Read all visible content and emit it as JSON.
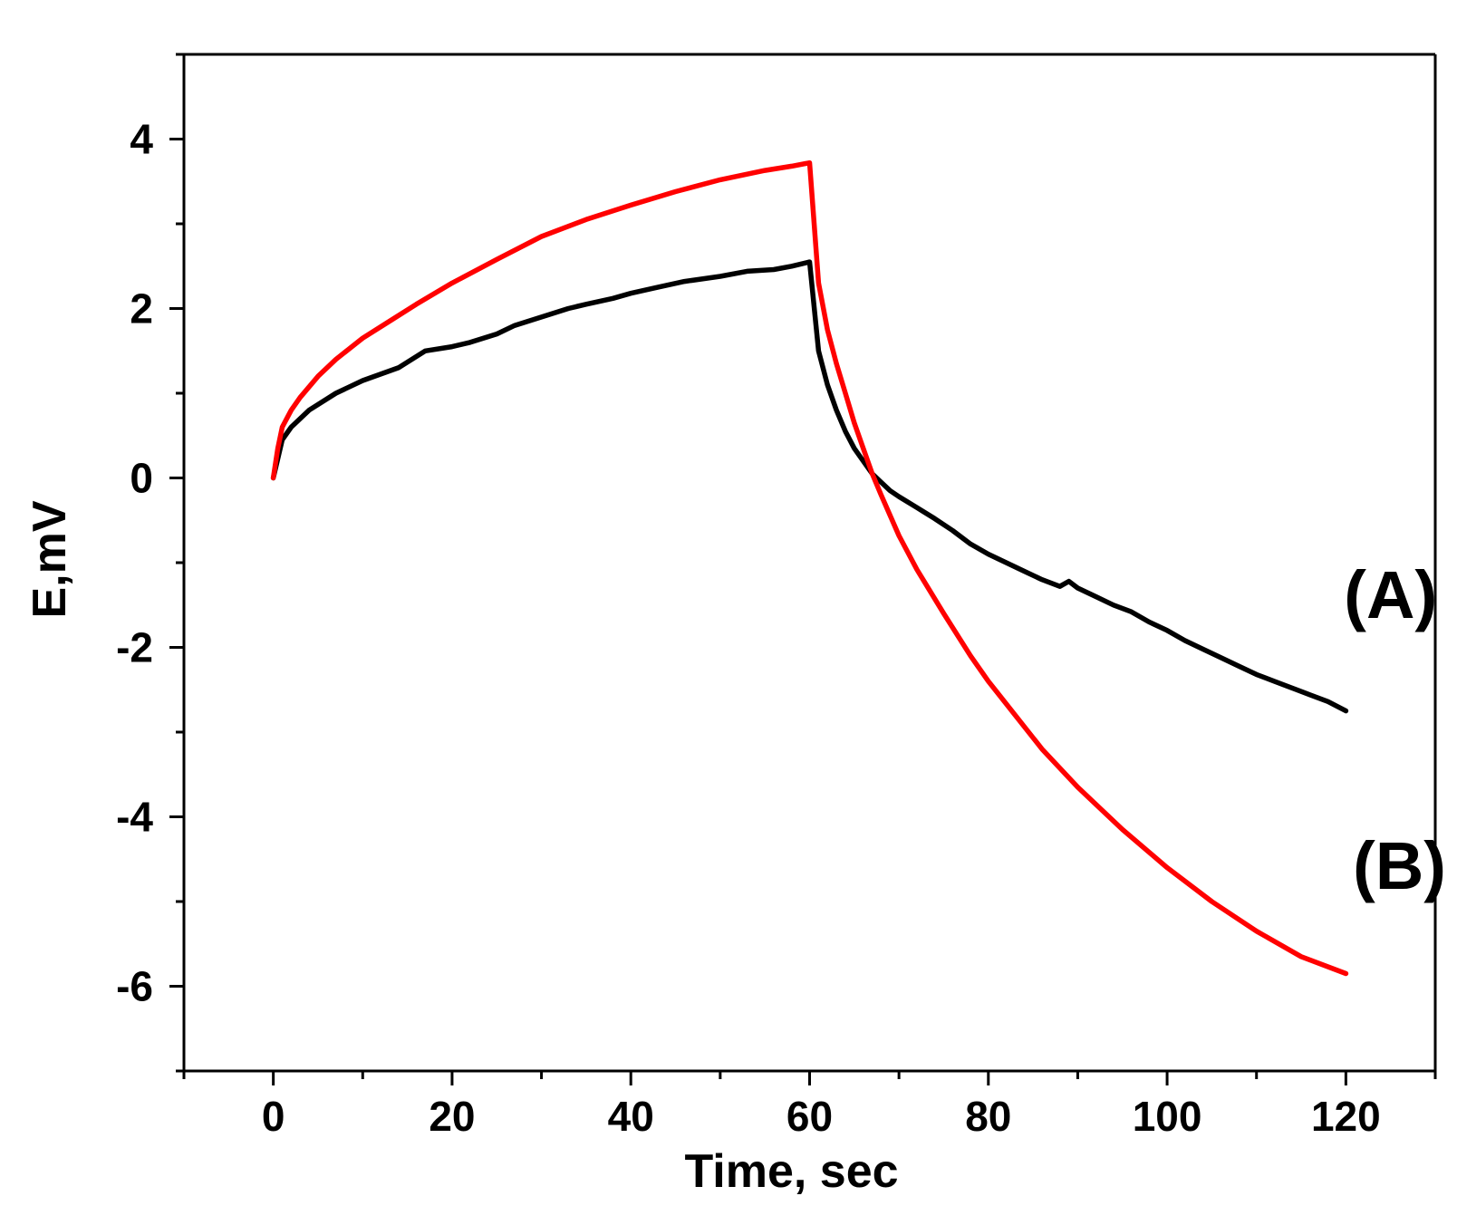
{
  "chart_data": {
    "type": "line",
    "title": "",
    "xlabel": "Time, sec",
    "ylabel": "E,mV",
    "xlim": [
      -10,
      130
    ],
    "ylim": [
      -7,
      5
    ],
    "x_ticks": [
      0,
      20,
      40,
      60,
      80,
      100,
      120
    ],
    "x_tick_labels": [
      "0",
      "20",
      "40",
      "60",
      "80",
      "100",
      "120"
    ],
    "x_minor_ticks": [
      -10,
      10,
      30,
      50,
      70,
      90,
      110,
      130
    ],
    "y_ticks": [
      -6,
      -4,
      -2,
      0,
      2,
      4
    ],
    "y_tick_labels": [
      "-6",
      "-4",
      "-2",
      "0",
      "2",
      "4"
    ],
    "y_minor_ticks": [
      -7,
      -5,
      -3,
      -1,
      1,
      3,
      5
    ],
    "grid": false,
    "legend": "none",
    "series": [
      {
        "name": "(A)",
        "label": "(A)",
        "label_anchor": [
          125,
          -1.65
        ],
        "color": "#000000",
        "x": [
          0,
          1,
          2,
          4,
          7,
          10,
          14,
          17,
          20,
          22,
          25,
          27,
          30,
          33,
          35,
          38,
          40,
          43,
          46,
          50,
          53,
          56,
          58,
          60,
          61,
          62,
          63,
          64,
          65,
          66,
          67,
          68,
          69,
          70,
          72,
          74,
          76,
          78,
          80,
          82,
          84,
          86,
          88,
          89,
          90,
          92,
          94,
          96,
          98,
          100,
          102,
          104,
          106,
          108,
          110,
          112,
          114,
          116,
          118,
          120
        ],
        "y": [
          0,
          0.45,
          0.6,
          0.8,
          1.0,
          1.15,
          1.3,
          1.5,
          1.55,
          1.6,
          1.7,
          1.8,
          1.9,
          2.0,
          2.05,
          2.12,
          2.18,
          2.25,
          2.32,
          2.38,
          2.44,
          2.46,
          2.5,
          2.55,
          1.5,
          1.1,
          0.8,
          0.55,
          0.35,
          0.2,
          0.05,
          -0.05,
          -0.15,
          -0.22,
          -0.35,
          -0.48,
          -0.62,
          -0.78,
          -0.9,
          -1.0,
          -1.1,
          -1.2,
          -1.28,
          -1.22,
          -1.3,
          -1.4,
          -1.5,
          -1.58,
          -1.7,
          -1.8,
          -1.92,
          -2.02,
          -2.12,
          -2.22,
          -2.32,
          -2.4,
          -2.48,
          -2.56,
          -2.64,
          -2.75
        ]
      },
      {
        "name": "(B)",
        "label": "(B)",
        "label_anchor": [
          126,
          -4.85
        ],
        "color": "#ff0000",
        "x": [
          0,
          0.5,
          1,
          2,
          3,
          5,
          7,
          10,
          13,
          16,
          20,
          25,
          30,
          35,
          40,
          45,
          50,
          55,
          58,
          60,
          61,
          62,
          63,
          64,
          65,
          66,
          67,
          68,
          70,
          72,
          75,
          78,
          80,
          83,
          86,
          90,
          95,
          100,
          105,
          110,
          115,
          120
        ],
        "y": [
          0,
          0.35,
          0.6,
          0.8,
          0.95,
          1.2,
          1.4,
          1.65,
          1.85,
          2.05,
          2.3,
          2.58,
          2.85,
          3.05,
          3.22,
          3.38,
          3.52,
          3.63,
          3.68,
          3.72,
          2.3,
          1.75,
          1.35,
          1.0,
          0.65,
          0.35,
          0.05,
          -0.2,
          -0.68,
          -1.08,
          -1.6,
          -2.1,
          -2.4,
          -2.8,
          -3.2,
          -3.65,
          -4.15,
          -4.6,
          -5.0,
          -5.35,
          -5.65,
          -5.85
        ]
      }
    ]
  }
}
